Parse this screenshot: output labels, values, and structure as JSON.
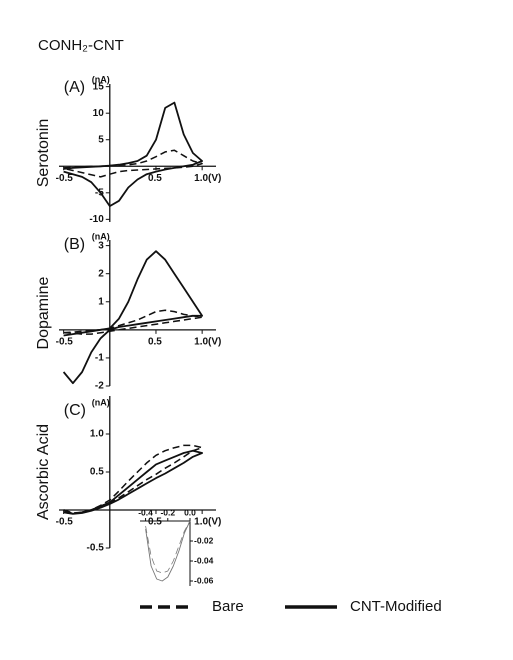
{
  "title": "CONH₂-CNT",
  "legend": [
    {
      "label": "Bare",
      "style": "dashed"
    },
    {
      "label": "CNT-Modified",
      "style": "solid"
    }
  ],
  "chart_data": [
    {
      "type": "line",
      "panel": "(A)",
      "unit": "(nA)",
      "y_label": "Serotonin",
      "x": [
        -0.5,
        -0.4,
        -0.3,
        -0.2,
        -0.1,
        0,
        0.1,
        0.2,
        0.3,
        0.4,
        0.5,
        0.6,
        0.7,
        0.8,
        0.9,
        1.0,
        0.9,
        0.8,
        0.7,
        0.6,
        0.5,
        0.4,
        0.3,
        0.2,
        0.1,
        0,
        -0.1,
        -0.2,
        -0.3,
        -0.4,
        -0.5
      ],
      "series": [
        {
          "style": "dashed",
          "values": [
            -0.3,
            -0.2,
            -0.1,
            0,
            0,
            0.1,
            0.2,
            0.3,
            0.5,
            1,
            1.8,
            2.7,
            3,
            2,
            1,
            0.5,
            0,
            -0.2,
            -0.3,
            -0.4,
            -0.5,
            -0.6,
            -0.7,
            -0.8,
            -1,
            -1.5,
            -2,
            -1.6,
            -1.2,
            -0.8,
            -0.4
          ]
        },
        {
          "style": "solid",
          "values": [
            -0.5,
            -0.3,
            -0.2,
            -0.1,
            0,
            0.1,
            0.3,
            0.6,
            1,
            2,
            5,
            11,
            12,
            6,
            2.5,
            1,
            0.3,
            0,
            -0.3,
            -0.6,
            -1,
            -1.5,
            -2.5,
            -4,
            -6.5,
            -7.5,
            -5,
            -3,
            -2,
            -1.5,
            -1
          ]
        }
      ],
      "xlim": [
        -0.55,
        1.15
      ],
      "ylim": [
        -10.5,
        15.5
      ],
      "xticks": [
        -0.5,
        0.5,
        {
          "value": 1.0,
          "label": "1.0(V)"
        }
      ],
      "yticks": [
        15,
        10,
        5,
        -5,
        -10
      ]
    },
    {
      "type": "line",
      "panel": "(B)",
      "unit": "(nA)",
      "y_label": "Dopamine",
      "x": [
        -0.5,
        -0.4,
        -0.3,
        -0.2,
        -0.1,
        0,
        0.1,
        0.2,
        0.3,
        0.4,
        0.5,
        0.6,
        0.7,
        0.8,
        0.9,
        1.0,
        0.9,
        0.8,
        0.7,
        0.6,
        0.5,
        0.4,
        0.3,
        0.2,
        0.1,
        0,
        -0.1,
        -0.2,
        -0.3,
        -0.4,
        -0.5
      ],
      "series": [
        {
          "style": "dashed",
          "values": [
            -0.1,
            -0.08,
            -0.05,
            -0.03,
            0,
            0.05,
            0.15,
            0.25,
            0.35,
            0.5,
            0.65,
            0.7,
            0.65,
            0.55,
            0.5,
            0.45,
            0.4,
            0.35,
            0.3,
            0.25,
            0.2,
            0.15,
            0.1,
            0.05,
            0,
            -0.05,
            -0.1,
            -0.15,
            -0.15,
            -0.12,
            -0.1
          ]
        },
        {
          "style": "solid",
          "values": [
            -0.2,
            -0.15,
            -0.1,
            -0.05,
            0,
            0.05,
            0.4,
            1,
            1.8,
            2.5,
            2.8,
            2.5,
            2,
            1.5,
            1,
            0.5,
            0.5,
            0.45,
            0.4,
            0.35,
            0.3,
            0.25,
            0.2,
            0.15,
            0.1,
            0,
            -0.3,
            -0.8,
            -1.5,
            -1.9,
            -1.5
          ]
        }
      ],
      "xlim": [
        -0.55,
        1.15
      ],
      "ylim": [
        -2,
        3.2
      ],
      "xticks": [
        -0.5,
        0.5,
        {
          "value": 1.0,
          "label": "1.0(V)"
        }
      ],
      "yticks": [
        3,
        2,
        1,
        -1,
        -2
      ]
    },
    {
      "type": "line",
      "panel": "(C)",
      "unit": "(nA)",
      "y_label": "Ascorbic Acid",
      "x": [
        -0.5,
        -0.4,
        -0.3,
        -0.2,
        -0.1,
        0,
        0.1,
        0.2,
        0.3,
        0.4,
        0.5,
        0.6,
        0.7,
        0.8,
        0.9,
        1.0,
        0.9,
        0.8,
        0.7,
        0.6,
        0.5,
        0.4,
        0.3,
        0.2,
        0.1,
        0,
        -0.1,
        -0.2,
        -0.3,
        -0.4,
        -0.5
      ],
      "series": [
        {
          "style": "dashed",
          "values": [
            0,
            -0.04,
            -0.03,
            0,
            0.06,
            0.13,
            0.25,
            0.38,
            0.5,
            0.62,
            0.72,
            0.78,
            0.82,
            0.85,
            0.85,
            0.82,
            0.78,
            0.7,
            0.62,
            0.55,
            0.47,
            0.4,
            0.32,
            0.24,
            0.16,
            0.1,
            0.05,
            0,
            -0.03,
            -0.05,
            -0.03
          ]
        },
        {
          "style": "solid",
          "values": [
            0,
            -0.05,
            -0.03,
            0,
            0.05,
            0.1,
            0.2,
            0.3,
            0.4,
            0.5,
            0.6,
            0.65,
            0.7,
            0.75,
            0.78,
            0.75,
            0.7,
            0.62,
            0.55,
            0.48,
            0.42,
            0.35,
            0.28,
            0.21,
            0.14,
            0.08,
            0.03,
            -0.01,
            -0.04,
            -0.05,
            -0.03
          ]
        }
      ],
      "xlim": [
        -0.55,
        1.15
      ],
      "ylim": [
        -0.5,
        1.5
      ],
      "xticks": [
        -0.5,
        0.5,
        {
          "value": 1.0,
          "label": "1.0(V)"
        }
      ],
      "yticks": [
        {
          "value": 1.0,
          "label": "1.0"
        },
        0.5,
        -0.5
      ]
    },
    {
      "type": "inset",
      "x": [
        -0.4,
        -0.35,
        -0.3,
        -0.25,
        -0.2,
        -0.15,
        -0.1,
        -0.05,
        0
      ],
      "series": [
        {
          "style": "dashed",
          "values": [
            -0.005,
            -0.035,
            -0.05,
            -0.052,
            -0.05,
            -0.04,
            -0.025,
            -0.01,
            0
          ]
        },
        {
          "style": "solid",
          "values": [
            -0.008,
            -0.045,
            -0.058,
            -0.06,
            -0.056,
            -0.045,
            -0.03,
            -0.012,
            0
          ]
        }
      ],
      "xlim": [
        -0.45,
        0
      ],
      "ylim": [
        -0.065,
        0
      ],
      "xticks": [
        -0.4,
        -0.2,
        {
          "value": 0,
          "label": "0.0"
        }
      ],
      "yticks": [
        -0.02,
        -0.04,
        -0.06
      ]
    }
  ]
}
